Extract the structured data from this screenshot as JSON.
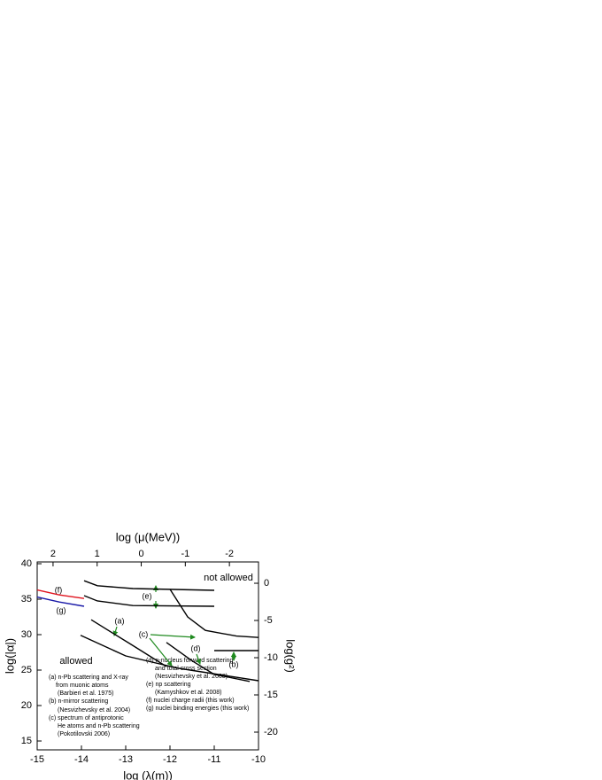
{
  "chart_data": {
    "type": "line",
    "xlabel": "log (λ(m))",
    "ylabel": "log(|α|)",
    "y2label": "log(g²)",
    "x2label": "log (μ(MeV))",
    "xlim": [
      -15,
      -10
    ],
    "xticks": [
      -15,
      -14,
      -13,
      -12,
      -11,
      -10
    ],
    "ylim": [
      13.75,
      40.25
    ],
    "yticks": [
      15,
      20,
      25,
      30,
      35,
      40
    ],
    "y2lim": [
      -22.38,
      2.86
    ],
    "y2ticks": [
      0,
      -5,
      -10,
      -15,
      -20
    ],
    "x2lim": [
      2.36,
      -2.66
    ],
    "x2ticks": [
      2,
      1,
      0,
      -1,
      -2
    ],
    "series": [
      {
        "color": "#e0141e",
        "x": [
          -15,
          -14.5,
          -13.94
        ],
        "values": [
          36.3,
          35.6,
          35.1
        ]
      },
      {
        "color": "#1a1aa8",
        "x": [
          -15,
          -14.5,
          -13.94
        ],
        "values": [
          35.3,
          34.6,
          34.0
        ]
      },
      {
        "color": "#000000",
        "x": [
          -13.94,
          -13.64,
          -12.84,
          -11
        ],
        "values": [
          37.6,
          36.9,
          36.5,
          36.25
        ]
      },
      {
        "color": "#000000",
        "x": [
          -13.94,
          -13.64,
          -12.84,
          -11
        ],
        "values": [
          35.5,
          34.75,
          34.1,
          34.0
        ]
      },
      {
        "color": "#000000",
        "x": [
          -13.78,
          -12.9,
          -12.08
        ],
        "values": [
          32.1,
          28.7,
          25.5
        ]
      },
      {
        "color": "#000000",
        "x": [
          -14.02,
          -13.0,
          -11.8,
          -10
        ],
        "values": [
          29.9,
          27.0,
          25.25,
          23.5
        ]
      },
      {
        "color": "#000000",
        "x": [
          -12,
          -11.6,
          -11.2,
          -10.5,
          -10
        ],
        "values": [
          36.4,
          32.5,
          30.6,
          29.8,
          29.6
        ]
      },
      {
        "color": "#000000",
        "x": [
          -12.08,
          -11.5,
          -11,
          -10.2
        ],
        "values": [
          28.9,
          26.3,
          24.4,
          23.4
        ]
      },
      {
        "color": "#000000",
        "x": [
          -11,
          -10
        ],
        "values": [
          27.75,
          27.75
        ]
      }
    ],
    "annotations": [
      "(f)",
      "(g)",
      "(e)",
      "(a)",
      "(c)",
      "(d)",
      "(b)",
      "not allowed",
      "allowed"
    ],
    "notes": [
      "(a) n-Pb scattering and X-ray",
      "from muonic atoms",
      "(Barbieri et al. 1975)",
      "(b) n-mirror scattering",
      "(Nesvizhevsky et al. 2004)",
      "(c) spectrum of antiprotonic",
      "He atoms and n-Pb scattering",
      "(Pokotilovski 2006)",
      "(d) n-nucleus forward scattering",
      "and total cross section",
      "(Nesvizhevsky et al. 2008)",
      "(e) np scattering",
      "(Kamyshkov et al. 2008)",
      "(f)  nuclei charge radii (this work)",
      "(g) nuclei binding energies (this work)"
    ]
  }
}
